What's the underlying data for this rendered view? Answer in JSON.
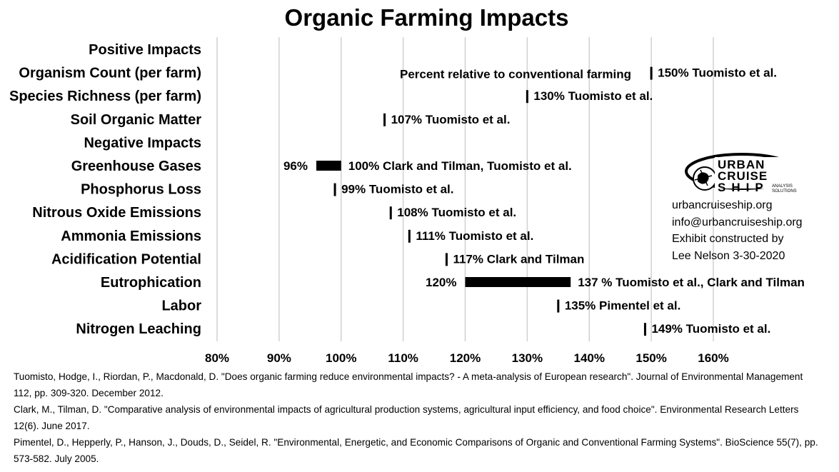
{
  "title": "Organic Farming Impacts",
  "chart_data": {
    "type": "bar",
    "orientation": "horizontal",
    "title": "Organic Farming Impacts",
    "annotation": "Percent relative to conventional farming",
    "xlim": [
      80,
      160
    ],
    "x_ticks": [
      "80%",
      "90%",
      "100%",
      "110%",
      "120%",
      "130%",
      "140%",
      "150%",
      "160%"
    ],
    "grid": true,
    "rows": [
      {
        "label": "Positive Impacts",
        "header": true
      },
      {
        "label": "Organism Count (per farm)",
        "value": 150,
        "text": "150% Tuomisto et al."
      },
      {
        "label": "Species Richness (per farm)",
        "value": 130,
        "text": "130% Tuomisto et al."
      },
      {
        "label": "Soil Organic Matter",
        "value": 107,
        "text": "107% Tuomisto et al."
      },
      {
        "label": "Negative Impacts",
        "header": true
      },
      {
        "label": "Greenhouse Gases",
        "low": 96,
        "high": 100,
        "low_text": "96%",
        "text": "100% Clark and Tilman, Tuomisto et al."
      },
      {
        "label": "Phosphorus Loss",
        "value": 99,
        "text": "99% Tuomisto et al."
      },
      {
        "label": "Nitrous Oxide Emissions",
        "value": 108,
        "text": "108% Tuomisto et al."
      },
      {
        "label": "Ammonia Emissions",
        "value": 111,
        "text": "111% Tuomisto et al."
      },
      {
        "label": "Acidification Potential",
        "value": 117,
        "text": "117% Clark and Tilman"
      },
      {
        "label": "Eutrophication",
        "low": 120,
        "high": 137,
        "low_text": "120%",
        "text": "137 % Tuomisto et al., Clark and Tilman"
      },
      {
        "label": "Labor",
        "value": 135,
        "text": "135% Pimentel et al."
      },
      {
        "label": "Nitrogen Leaching",
        "value": 149,
        "text": "149% Tuomisto et al."
      }
    ]
  },
  "logo": {
    "top": "URBAN",
    "middle": "CRUISE",
    "bottom": "SHIP",
    "tagline_1": "ANALYSIS",
    "tagline_2": "SOLUTIONS"
  },
  "contact": {
    "website": "urbancruiseship.org",
    "email": "info@urbancruiseship.org",
    "credit_1": "Exhibit constructed by",
    "credit_2": "Lee Nelson 3-30-2020"
  },
  "references": [
    "Tuomisto, Hodge, I., Riordan, P., Macdonald, D. \"Does organic farming reduce environmental impacts? - A meta-analysis of European research\". Journal of Environmental Management 112, pp. 309-320. December 2012.",
    "Clark, M., Tilman, D. \"Comparative analysis of environmental impacts of agricultural production systems, agricultural input efficiency, and food choice\". Environmental Research Letters 12(6). June 2017.",
    "Pimentel, D., Hepperly, P., Hanson, J., Douds, D., Seidel, R. \"Environmental, Energetic, and Economic Comparisons of Organic and Conventional Farming Systems\". BioScience 55(7), pp. 573-582. July 2005."
  ]
}
